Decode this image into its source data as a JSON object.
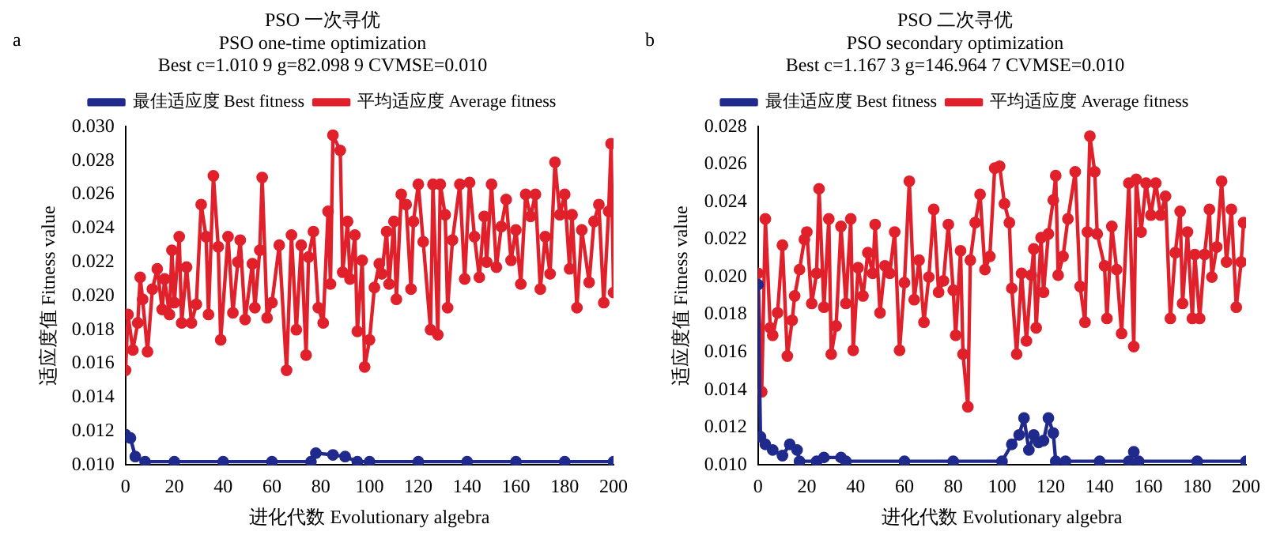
{
  "chart_data": [
    {
      "type": "line",
      "title": "PSO 一次寻优",
      "subtitle": "PSO one-time optimization\nBest c=1.010 9 g=82.098 9 CVMSE=0.010",
      "xlabel": "进化代数 Evolutionary algebra",
      "ylabel": "适应度值 Fitness value",
      "annotations": [
        "a"
      ],
      "legend": "top",
      "marker": "circle",
      "xlim": [
        0,
        200
      ],
      "xticks": [
        0,
        20,
        40,
        60,
        80,
        100,
        120,
        140,
        160,
        180,
        200
      ],
      "ylim": [
        0.01,
        0.03
      ],
      "yticks": [
        {
          "value": 0.01,
          "label": "0.010"
        },
        {
          "value": 0.012,
          "label": "0.012"
        },
        {
          "value": 0.014,
          "label": "0.014"
        },
        {
          "value": 0.016,
          "label": "0.016"
        },
        {
          "value": 0.018,
          "label": "0.018"
        },
        {
          "value": 0.02,
          "label": "0.020"
        },
        {
          "value": 0.022,
          "label": "0.022"
        },
        {
          "value": 0.024,
          "label": "0.024"
        },
        {
          "value": 0.026,
          "label": "0.026"
        },
        {
          "value": 0.028,
          "label": "0.028"
        },
        {
          "value": 0.03,
          "label": "0.030"
        }
      ],
      "series": [
        {
          "name": "最佳适应度 Best fitness",
          "color": "#1f2a8c",
          "x": [
            0,
            2,
            4,
            8,
            20,
            40,
            60,
            76,
            78,
            85,
            90,
            95,
            100,
            120,
            140,
            160,
            180,
            200
          ],
          "values": [
            0.0118,
            0.0116,
            0.0105,
            0.0102,
            0.0102,
            0.0102,
            0.0102,
            0.0102,
            0.0107,
            0.0106,
            0.0105,
            0.0102,
            0.0102,
            0.0102,
            0.0102,
            0.0102,
            0.0102,
            0.0102
          ]
        },
        {
          "name": "平均适应度 Average fitness",
          "color": "#e0202a",
          "x": [
            0,
            1,
            3,
            5,
            6,
            7,
            9,
            11,
            13,
            15,
            16,
            18,
            19,
            20,
            22,
            23,
            25,
            27,
            29,
            31,
            33,
            34,
            36,
            38,
            39,
            42,
            44,
            46,
            47,
            49,
            52,
            53,
            55,
            56,
            58,
            60,
            63,
            66,
            68,
            70,
            72,
            74,
            75,
            77,
            79,
            81,
            83,
            84,
            85,
            88,
            89,
            91,
            92,
            94,
            95,
            97,
            98,
            100,
            102,
            104,
            105,
            107,
            108,
            110,
            111,
            113,
            115,
            117,
            118,
            120,
            122,
            125,
            126,
            128,
            129,
            131,
            132,
            134,
            137,
            139,
            141,
            143,
            145,
            147,
            148,
            150,
            152,
            154,
            156,
            158,
            160,
            162,
            164,
            166,
            168,
            170,
            172,
            174,
            176,
            178,
            180,
            182,
            183,
            185,
            187,
            190,
            192,
            194,
            196,
            198,
            199,
            200
          ],
          "values": [
            0.0156,
            0.0189,
            0.0168,
            0.0184,
            0.0211,
            0.0198,
            0.0167,
            0.0204,
            0.0216,
            0.0192,
            0.021,
            0.0189,
            0.0227,
            0.0196,
            0.0235,
            0.0184,
            0.0217,
            0.0184,
            0.0195,
            0.0254,
            0.0235,
            0.0189,
            0.0271,
            0.0229,
            0.0174,
            0.0235,
            0.019,
            0.022,
            0.0233,
            0.0186,
            0.0219,
            0.0193,
            0.0227,
            0.027,
            0.0187,
            0.0196,
            0.023,
            0.0156,
            0.0236,
            0.018,
            0.023,
            0.0165,
            0.0223,
            0.0238,
            0.0193,
            0.0184,
            0.025,
            0.0207,
            0.0295,
            0.0286,
            0.0214,
            0.0244,
            0.021,
            0.0236,
            0.0179,
            0.0221,
            0.0158,
            0.0174,
            0.0205,
            0.0219,
            0.0213,
            0.0238,
            0.0207,
            0.0244,
            0.0198,
            0.026,
            0.0254,
            0.0204,
            0.0244,
            0.0266,
            0.0232,
            0.018,
            0.0266,
            0.0177,
            0.0266,
            0.0248,
            0.0193,
            0.0233,
            0.0266,
            0.021,
            0.0267,
            0.0235,
            0.0211,
            0.0247,
            0.022,
            0.0266,
            0.0217,
            0.0241,
            0.0257,
            0.0221,
            0.0239,
            0.0207,
            0.026,
            0.0247,
            0.026,
            0.0204,
            0.0235,
            0.0213,
            0.0279,
            0.0248,
            0.026,
            0.0216,
            0.0248,
            0.0193,
            0.0239,
            0.0208,
            0.0244,
            0.0254,
            0.0196,
            0.025,
            0.029,
            0.0202
          ]
        }
      ]
    },
    {
      "type": "line",
      "title": "PSO 二次寻优",
      "subtitle": "PSO secondary optimization\nBest c=1.167 3 g=146.964 7 CVMSE=0.010",
      "xlabel": "进化代数 Evolutionary algebra",
      "ylabel": "适应度值 Fitness value",
      "annotations": [
        "b"
      ],
      "legend": "top",
      "marker": "circle",
      "xlim": [
        0,
        200
      ],
      "xticks": [
        0,
        20,
        40,
        60,
        80,
        100,
        120,
        140,
        160,
        180,
        200
      ],
      "ylim": [
        0.01,
        0.028
      ],
      "yticks": [
        {
          "value": 0.01,
          "label": "0.010"
        },
        {
          "value": 0.012,
          "label": "0.012"
        },
        {
          "value": 0.014,
          "label": "0.014"
        },
        {
          "value": 0.016,
          "label": "0.016"
        },
        {
          "value": 0.018,
          "label": "0.018"
        },
        {
          "value": 0.02,
          "label": "0.020"
        },
        {
          "value": 0.022,
          "label": "0.022"
        },
        {
          "value": 0.024,
          "label": "0.024"
        },
        {
          "value": 0.026,
          "label": "0.026"
        },
        {
          "value": 0.028,
          "label": "0.028"
        }
      ],
      "series": [
        {
          "name": "最佳适应度 Best fitness",
          "color": "#1f2a8c",
          "x": [
            0,
            1,
            3,
            6,
            10,
            13,
            16,
            17,
            24,
            27,
            34,
            36,
            60,
            80,
            100,
            104,
            107,
            109,
            111,
            113,
            115,
            117,
            119,
            121,
            122,
            126,
            140,
            152,
            154,
            156,
            180,
            200
          ],
          "values": [
            0.0196,
            0.0115,
            0.0111,
            0.0108,
            0.0105,
            0.0111,
            0.0108,
            0.0102,
            0.0102,
            0.0104,
            0.0104,
            0.0102,
            0.0102,
            0.0102,
            0.0102,
            0.0111,
            0.0116,
            0.0125,
            0.0108,
            0.0116,
            0.0112,
            0.0113,
            0.0125,
            0.0117,
            0.0102,
            0.0102,
            0.0102,
            0.0102,
            0.0107,
            0.0102,
            0.0102,
            0.0102
          ]
        },
        {
          "name": "平均适应度 Average fitness",
          "color": "#e0202a",
          "x": [
            0,
            1.5,
            3,
            5,
            6,
            8,
            10,
            12,
            14,
            15,
            17,
            19,
            20,
            22,
            24,
            25,
            27,
            29,
            30,
            32,
            34,
            36,
            38,
            39,
            41,
            43,
            45,
            47,
            48,
            50,
            52,
            54,
            56,
            58,
            60,
            62,
            64,
            66,
            68,
            70,
            72,
            74,
            76,
            78,
            80,
            81,
            83,
            84,
            86,
            87,
            89,
            91,
            93,
            95,
            97,
            99,
            101,
            103,
            104,
            106,
            108,
            110,
            112,
            113,
            114,
            116,
            117,
            119,
            121,
            122,
            123,
            125,
            127,
            130,
            132,
            134,
            135,
            136,
            138,
            139,
            142,
            143,
            145,
            147,
            149,
            152,
            154,
            155,
            157,
            159,
            161,
            163,
            165,
            167,
            169,
            171,
            173,
            174,
            176,
            178,
            179,
            181,
            183,
            185,
            186,
            188,
            190,
            192,
            194,
            196,
            198,
            199
          ],
          "values": [
            0.0202,
            0.0139,
            0.0231,
            0.0173,
            0.0169,
            0.0181,
            0.0217,
            0.0158,
            0.0177,
            0.019,
            0.0204,
            0.022,
            0.0224,
            0.0186,
            0.0202,
            0.0247,
            0.0184,
            0.0231,
            0.0159,
            0.0174,
            0.0227,
            0.0186,
            0.0231,
            0.0161,
            0.0205,
            0.019,
            0.0213,
            0.0202,
            0.0228,
            0.0181,
            0.0206,
            0.0202,
            0.0224,
            0.0161,
            0.0197,
            0.0251,
            0.0188,
            0.0209,
            0.0176,
            0.02,
            0.0236,
            0.0192,
            0.0198,
            0.0228,
            0.0193,
            0.0169,
            0.0214,
            0.0159,
            0.0131,
            0.0209,
            0.0229,
            0.0244,
            0.0204,
            0.0211,
            0.0258,
            0.0259,
            0.0239,
            0.0229,
            0.0194,
            0.0159,
            0.0202,
            0.0166,
            0.0201,
            0.0215,
            0.0173,
            0.0221,
            0.0192,
            0.0223,
            0.0241,
            0.0254,
            0.0201,
            0.0211,
            0.0231,
            0.0256,
            0.0195,
            0.0176,
            0.0224,
            0.0275,
            0.0256,
            0.0223,
            0.0206,
            0.0178,
            0.0227,
            0.0204,
            0.017,
            0.025,
            0.0163,
            0.0252,
            0.0224,
            0.025,
            0.0233,
            0.025,
            0.0233,
            0.0243,
            0.0178,
            0.0213,
            0.0235,
            0.0186,
            0.0224,
            0.0178,
            0.0212,
            0.0178,
            0.0212,
            0.0236,
            0.02,
            0.0216,
            0.0251,
            0.0208,
            0.0236,
            0.0184,
            0.0208,
            0.0229
          ]
        }
      ]
    }
  ]
}
